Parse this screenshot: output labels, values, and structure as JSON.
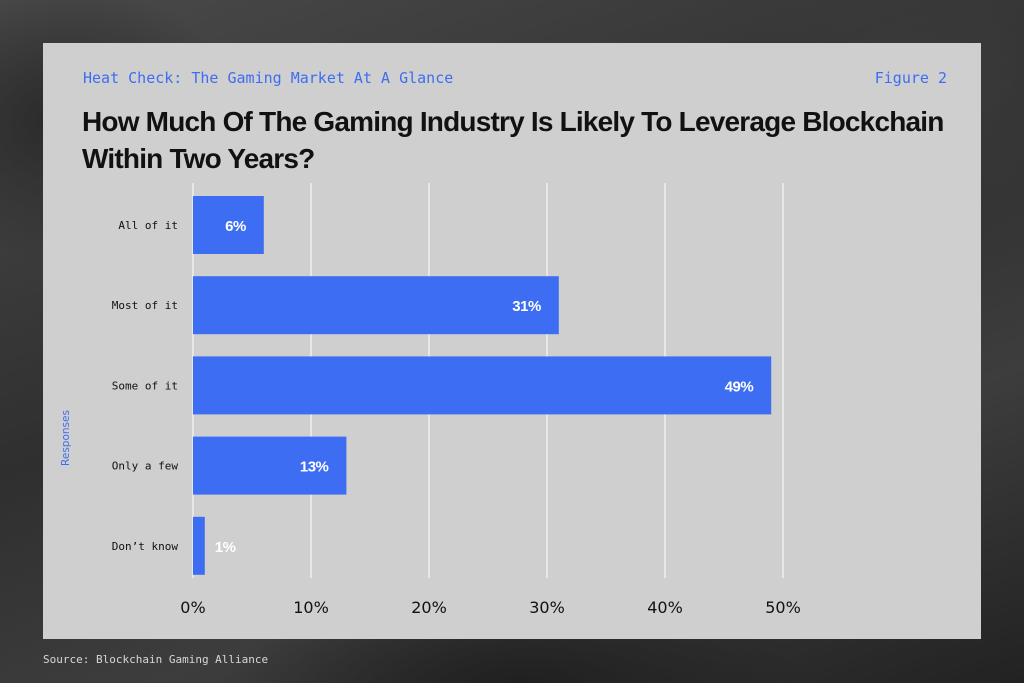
{
  "header": {
    "kicker": "Heat Check: The Gaming Market At A Glance",
    "figure_label": "Figure 2",
    "title": "How Much Of The Gaming Industry Is Likely To Leverage Blockchain Within Two Years?"
  },
  "source": "Source: Blockchain Gaming Alliance",
  "colors": {
    "bar": "#3d6df2",
    "card": "#cfcfcf",
    "grid": "#ffffff",
    "accent_text": "#3d6df2"
  },
  "chart_data": {
    "type": "bar",
    "orientation": "horizontal",
    "title": "How Much Of The Gaming Industry Is Likely To Leverage Blockchain Within Two Years?",
    "ylabel": "Responses",
    "xlabel": "",
    "categories": [
      "All of it",
      "Most of it",
      "Some of it",
      "Only a few",
      "Don’t know"
    ],
    "values": [
      6,
      31,
      49,
      13,
      1
    ],
    "value_labels": [
      "6%",
      "31%",
      "49%",
      "13%",
      "1%"
    ],
    "xlim": [
      0,
      50
    ],
    "x_ticks": [
      0,
      10,
      20,
      30,
      40,
      50
    ],
    "x_tick_labels": [
      "0%",
      "10%",
      "20%",
      "30%",
      "40%",
      "50%"
    ],
    "grid": "vertical"
  }
}
